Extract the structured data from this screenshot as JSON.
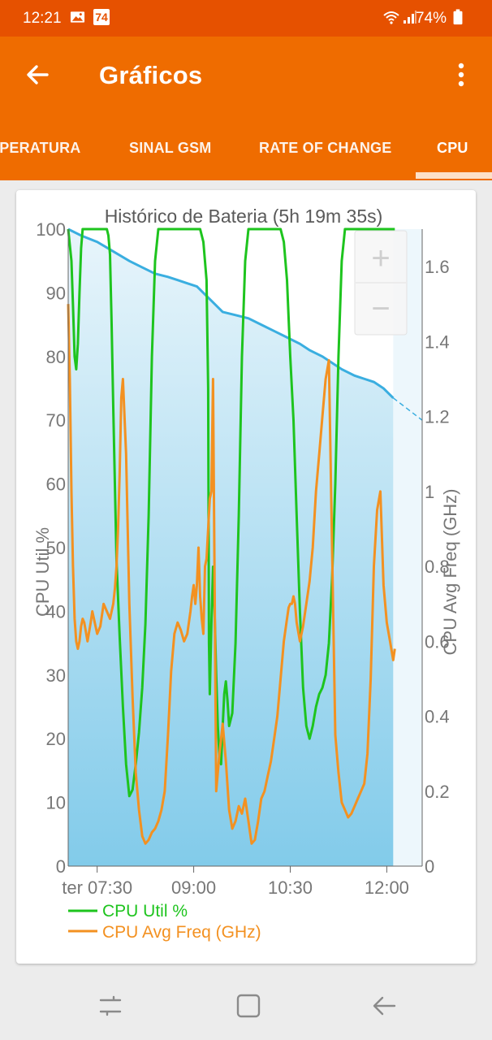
{
  "status_bar": {
    "time": "12:21",
    "notification_badge": "74",
    "battery": "74%"
  },
  "app_bar": {
    "title": "Gráficos",
    "back_icon": "arrow-left-icon",
    "menu_icon": "more-vert-icon"
  },
  "tabs": [
    {
      "label": "IPERATURA",
      "selected": false
    },
    {
      "label": "SINAL GSM",
      "selected": false
    },
    {
      "label": "RATE OF CHANGE",
      "selected": false
    },
    {
      "label": "CPU",
      "selected": true
    }
  ],
  "colors": {
    "status_bar": "#e65100",
    "app_bar": "#ef6c00",
    "tab_indicator": "#fde0c8",
    "cpu_util": "#1ec41e",
    "cpu_freq": "#f39121",
    "battery_line": "#3aaee0",
    "battery_fill_top": "#e8f5fb",
    "battery_fill_bottom": "#82cbea"
  },
  "chart_data": {
    "type": "line",
    "title": "Histórico de Bateria (5h 19m 35s)",
    "xlabel": "",
    "ylabel_left": "CPU Util %",
    "ylabel_right": "CPU Avg Freq (GHz)",
    "x_unit": "minutes since 07:00",
    "xlim": [
      12,
      232
    ],
    "x_ticks": [
      {
        "x": 30,
        "label": "ter 07:30"
      },
      {
        "x": 90,
        "label": "09:00"
      },
      {
        "x": 150,
        "label": "10:30"
      },
      {
        "x": 210,
        "label": "12:00"
      }
    ],
    "ylim_left": [
      0,
      100
    ],
    "y_ticks_left": [
      "0",
      "10",
      "20",
      "30",
      "40",
      "50",
      "60",
      "70",
      "80",
      "90",
      "100"
    ],
    "ylim_right": [
      0,
      1.7
    ],
    "y_ticks_right": [
      {
        "v": 0,
        "label": "0"
      },
      {
        "v": 0.2,
        "label": "0.2"
      },
      {
        "v": 0.4,
        "label": "0.4"
      },
      {
        "v": 0.6,
        "label": "0.6"
      },
      {
        "v": 0.8,
        "label": "0.8"
      },
      {
        "v": 1.0,
        "label": "1"
      },
      {
        "v": 1.2,
        "label": "1.2"
      },
      {
        "v": 1.4,
        "label": "1.4"
      },
      {
        "v": 1.6,
        "label": "1.6"
      }
    ],
    "legend": [
      {
        "name": "CPU Util %",
        "color": "#1ec41e"
      },
      {
        "name": "CPU Avg Freq (GHz)",
        "color": "#f39121"
      }
    ],
    "zoom_controls": {
      "plus": "+",
      "minus": "−"
    },
    "battery_level": {
      "x": [
        12,
        20,
        30,
        40,
        50,
        58,
        66,
        74,
        80,
        86,
        92,
        100,
        108,
        116,
        124,
        132,
        140,
        148,
        156,
        162,
        170,
        176,
        182,
        190,
        196,
        202,
        208,
        214
      ],
      "y": [
        100,
        99,
        98,
        96.5,
        95,
        94,
        93,
        92.5,
        92,
        91.5,
        91,
        89,
        87,
        86.5,
        86,
        85,
        84,
        83,
        82,
        81,
        80,
        79,
        78,
        77,
        76.5,
        76,
        75,
        73.5
      ]
    },
    "battery_projection": {
      "x": [
        214,
        232
      ],
      "y": [
        73.5,
        70
      ]
    },
    "series": [
      {
        "name": "CPU Util %",
        "axis": "left",
        "x": [
          12,
          14,
          15,
          16,
          17,
          18,
          19,
          20,
          21,
          22,
          25,
          36,
          37,
          38,
          39,
          40,
          41,
          42,
          44,
          46,
          48,
          50,
          52,
          54,
          56,
          58,
          60,
          62,
          64,
          66,
          68,
          70,
          72,
          74,
          76,
          78,
          80,
          82,
          84,
          86,
          88,
          94,
          96,
          98,
          99,
          99.5,
          100,
          101,
          102,
          103,
          104,
          105,
          106,
          107,
          108,
          109,
          110,
          111,
          112,
          114,
          116,
          118,
          120,
          122,
          124,
          126,
          128,
          130,
          132,
          134,
          136,
          138,
          140,
          142,
          144,
          146,
          148,
          150,
          152,
          154,
          156,
          158,
          160,
          162,
          164,
          166,
          168,
          170,
          172,
          174,
          176,
          178,
          180,
          182,
          184,
          186,
          188,
          190,
          192,
          194,
          196,
          198,
          200,
          202,
          204,
          206,
          208,
          210,
          212,
          214,
          215
        ],
        "y": [
          100,
          95,
          88,
          80,
          78,
          82,
          90,
          97,
          100,
          100,
          100,
          100,
          99,
          96,
          85,
          72,
          60,
          48,
          36,
          25,
          16,
          11,
          12,
          16,
          21,
          28,
          38,
          55,
          80,
          95,
          100,
          100,
          100,
          100,
          100,
          100,
          100,
          100,
          100,
          100,
          100,
          100,
          98,
          92,
          75,
          35,
          27,
          38,
          47,
          40,
          30,
          22,
          17,
          16,
          22,
          27,
          29,
          26,
          22,
          24,
          35,
          55,
          80,
          95,
          100,
          100,
          100,
          100,
          100,
          100,
          100,
          100,
          100,
          100,
          100,
          98,
          92,
          80,
          70,
          55,
          40,
          28,
          22,
          20,
          22,
          25,
          27,
          28,
          30,
          35,
          45,
          60,
          80,
          95,
          100,
          100,
          100,
          100,
          100,
          100,
          100,
          100,
          100,
          100,
          100,
          100,
          100,
          100,
          100,
          100,
          100
        ]
      },
      {
        "name": "CPU Avg Freq (GHz)",
        "axis": "right",
        "x": [
          12,
          13,
          14,
          15,
          16,
          17,
          18,
          19,
          20,
          21,
          22,
          24,
          26,
          27,
          28,
          30,
          32,
          34,
          36,
          38,
          40,
          41,
          42,
          43,
          44,
          45,
          46,
          48,
          50,
          52,
          54,
          56,
          58,
          60,
          62,
          64,
          66,
          68,
          70,
          72,
          74,
          76,
          78,
          80,
          82,
          84,
          86,
          88,
          89,
          90,
          91,
          92,
          93,
          94,
          95,
          96,
          97,
          98,
          99,
          100,
          101,
          102,
          104,
          106,
          108,
          110,
          112,
          114,
          116,
          118,
          120,
          122,
          124,
          126,
          128,
          130,
          132,
          134,
          136,
          138,
          140,
          142,
          144,
          146,
          148,
          149,
          150,
          151,
          152,
          153,
          154,
          156,
          158,
          160,
          162,
          164,
          166,
          168,
          170,
          172,
          174,
          176,
          178,
          180,
          182,
          184,
          186,
          188,
          190,
          192,
          194,
          196,
          198,
          200,
          202,
          204,
          206,
          208,
          210,
          212,
          214,
          215
        ],
        "y": [
          1.5,
          1.3,
          1.0,
          0.8,
          0.66,
          0.6,
          0.58,
          0.6,
          0.64,
          0.66,
          0.65,
          0.6,
          0.65,
          0.68,
          0.66,
          0.62,
          0.64,
          0.7,
          0.68,
          0.66,
          0.7,
          0.74,
          0.8,
          0.9,
          1.05,
          1.25,
          1.3,
          1.1,
          0.7,
          0.45,
          0.25,
          0.15,
          0.08,
          0.06,
          0.07,
          0.09,
          0.1,
          0.12,
          0.15,
          0.2,
          0.35,
          0.52,
          0.62,
          0.65,
          0.63,
          0.6,
          0.62,
          0.68,
          0.72,
          0.75,
          0.7,
          0.75,
          0.85,
          0.72,
          0.66,
          0.62,
          0.8,
          0.82,
          0.9,
          0.98,
          1.0,
          1.3,
          0.2,
          0.3,
          0.38,
          0.28,
          0.15,
          0.1,
          0.12,
          0.16,
          0.14,
          0.18,
          0.12,
          0.06,
          0.07,
          0.12,
          0.18,
          0.2,
          0.24,
          0.28,
          0.34,
          0.4,
          0.5,
          0.6,
          0.66,
          0.69,
          0.7,
          0.7,
          0.72,
          0.7,
          0.65,
          0.6,
          0.64,
          0.7,
          0.76,
          0.85,
          1.0,
          1.1,
          1.2,
          1.3,
          1.35,
          0.85,
          0.35,
          0.25,
          0.17,
          0.15,
          0.13,
          0.14,
          0.16,
          0.18,
          0.2,
          0.22,
          0.3,
          0.5,
          0.8,
          0.95,
          1.0,
          0.75,
          0.65,
          0.6,
          0.55,
          0.58
        ]
      }
    ]
  }
}
